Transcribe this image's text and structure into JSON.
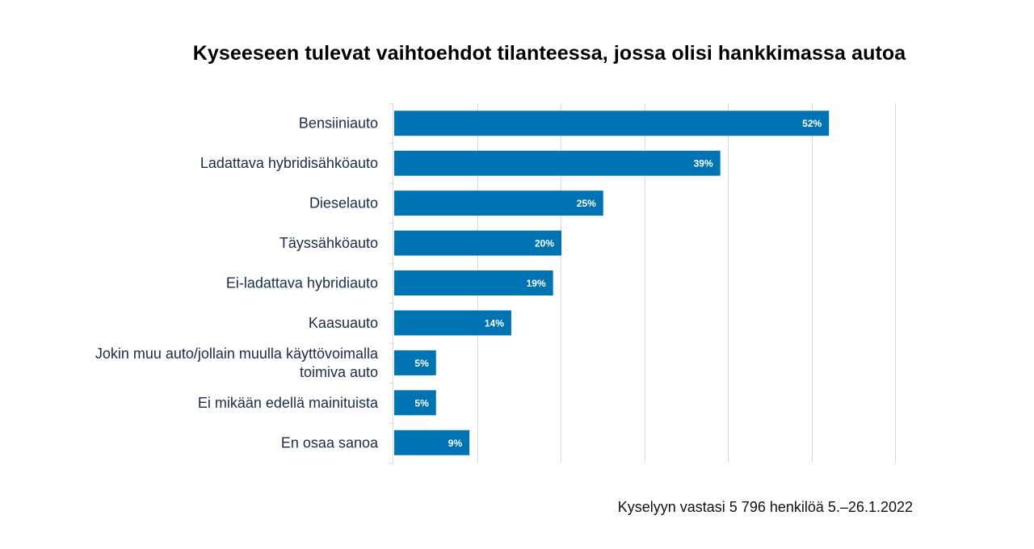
{
  "chart_data": {
    "type": "bar",
    "orientation": "horizontal",
    "title": "Kyseeseen tulevat vaihtoehdot tilanteessa, jossa olisi hankkimassa autoa",
    "categories": [
      [
        "Bensiiniauto"
      ],
      [
        "Ladattava hybridisähköauto"
      ],
      [
        "Dieselauto"
      ],
      [
        "Täyssähköauto"
      ],
      [
        "Ei-ladattava hybridiauto"
      ],
      [
        "Kaasuauto"
      ],
      [
        "Jokin muu auto/jollain muulla käyttövoimalla",
        "toimiva auto"
      ],
      [
        "Ei mikään edellä mainituista"
      ],
      [
        "En osaa sanoa"
      ]
    ],
    "values": [
      52,
      39,
      25,
      20,
      19,
      14,
      5,
      5,
      9
    ],
    "value_labels": [
      "52%",
      "39%",
      "25%",
      "20%",
      "19%",
      "14%",
      "5%",
      "5%",
      "9%"
    ],
    "xlim": [
      0,
      60
    ],
    "xticks": [
      0,
      10,
      20,
      30,
      40,
      50,
      60
    ],
    "grid": true,
    "bar_color": "#0074b3",
    "xlabel": "",
    "ylabel": ""
  },
  "source_note": "Kyselyyn vastasi 5 796 henkilöä 5.–26.1.2022"
}
